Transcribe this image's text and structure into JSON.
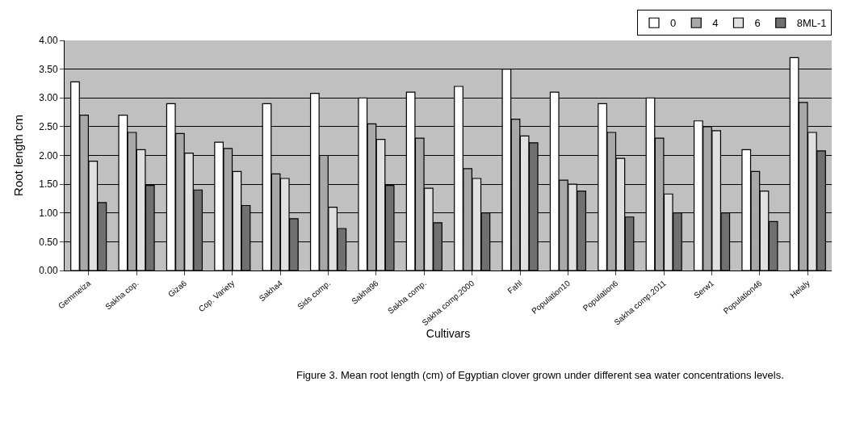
{
  "chart_data": {
    "type": "bar",
    "categories": [
      "Gemmeiza",
      "Sakha cop.",
      "Giza6",
      "Cop. Variety",
      "Sakha4",
      "Sids comp.",
      "Sakha96",
      "Sakha comp.",
      "Sakha comp.2000",
      "Fahl",
      "Population10",
      "Population6",
      "Sakha comp.2011",
      "Serw1",
      "Population46",
      "Helaly"
    ],
    "series": [
      {
        "name": "0",
        "color": "#ffffff",
        "values": [
          3.28,
          2.7,
          2.9,
          2.23,
          2.9,
          3.08,
          3.0,
          3.1,
          3.2,
          3.5,
          3.1,
          2.9,
          3.0,
          2.6,
          2.1,
          3.7
        ]
      },
      {
        "name": "4",
        "color": "#a8a8a8",
        "values": [
          2.7,
          2.4,
          2.38,
          2.12,
          1.68,
          2.0,
          2.55,
          2.3,
          1.77,
          2.63,
          1.57,
          2.4,
          2.3,
          2.5,
          1.72,
          2.92
        ]
      },
      {
        "name": "6",
        "color": "#e0e0e0",
        "values": [
          1.9,
          2.1,
          2.04,
          1.72,
          1.6,
          1.1,
          2.28,
          1.43,
          1.6,
          2.34,
          1.5,
          1.95,
          1.33,
          2.43,
          1.38,
          2.4
        ]
      },
      {
        "name": "8ML-1",
        "color": "#707070",
        "values": [
          1.18,
          1.48,
          1.4,
          1.13,
          0.9,
          0.73,
          1.48,
          0.83,
          1.0,
          2.22,
          1.38,
          0.93,
          1.0,
          1.0,
          0.85,
          2.08
        ]
      }
    ],
    "xlabel": "Cultivars",
    "ylabel": "Root length cm",
    "ylim": [
      0,
      4
    ],
    "yticks": [
      {
        "value": 0,
        "label": "0.00"
      },
      {
        "value": 0.5,
        "label": "0.50"
      },
      {
        "value": 1,
        "label": "1.00"
      },
      {
        "value": 1.5,
        "label": "1.50"
      },
      {
        "value": 2,
        "label": "2.00"
      },
      {
        "value": 2.5,
        "label": "2.50"
      },
      {
        "value": 3,
        "label": "3.00"
      },
      {
        "value": 3.5,
        "label": "3.50"
      },
      {
        "value": 4,
        "label": "4.00"
      }
    ],
    "grid": "y",
    "legend": "top right",
    "annotations": [
      "Figure 3. Mean root length (cm) of Egyptian clover grown under different sea water concentrations levels."
    ]
  }
}
